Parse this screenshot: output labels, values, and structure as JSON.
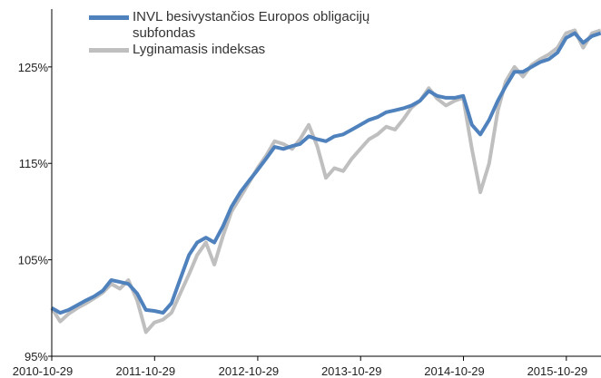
{
  "chart_data": {
    "type": "line",
    "x": [
      "2010-10-29",
      "2010-11-28",
      "2010-12-28",
      "2011-01-28",
      "2011-02-28",
      "2011-03-28",
      "2011-04-28",
      "2011-05-28",
      "2011-06-28",
      "2011-07-28",
      "2011-08-28",
      "2011-09-28",
      "2011-10-28",
      "2011-11-28",
      "2011-12-28",
      "2012-01-28",
      "2012-02-28",
      "2012-03-28",
      "2012-04-28",
      "2012-05-28",
      "2012-06-28",
      "2012-07-28",
      "2012-08-28",
      "2012-09-28",
      "2012-10-28",
      "2012-11-28",
      "2012-12-28",
      "2013-01-28",
      "2013-02-28",
      "2013-03-28",
      "2013-04-28",
      "2013-05-28",
      "2013-06-28",
      "2013-07-28",
      "2013-08-28",
      "2013-09-28",
      "2013-10-28",
      "2013-11-28",
      "2013-12-28",
      "2014-01-28",
      "2014-02-28",
      "2014-03-28",
      "2014-04-28",
      "2014-05-28",
      "2014-06-28",
      "2014-07-28",
      "2014-08-28",
      "2014-09-28",
      "2014-10-28",
      "2014-11-28",
      "2014-12-28",
      "2015-01-28",
      "2015-02-28",
      "2015-03-28",
      "2015-04-28",
      "2015-05-28",
      "2015-06-28",
      "2015-07-28",
      "2015-08-28",
      "2015-09-28",
      "2015-10-28",
      "2015-11-28",
      "2015-12-28",
      "2016-01-28",
      "2016-02-28"
    ],
    "series": [
      {
        "name": "Lyginamasis indeksas",
        "color": "#bfbfbf",
        "values": [
          100.0,
          98.6,
          99.4,
          100.0,
          100.5,
          101.0,
          101.6,
          102.5,
          102.0,
          102.9,
          100.8,
          97.5,
          98.5,
          98.8,
          99.5,
          101.5,
          103.5,
          105.5,
          106.8,
          104.5,
          107.5,
          110.0,
          111.5,
          113.0,
          114.5,
          115.8,
          117.3,
          117.0,
          116.5,
          117.5,
          119.0,
          116.8,
          113.5,
          114.5,
          114.2,
          115.5,
          116.5,
          117.5,
          118.0,
          118.8,
          118.5,
          119.5,
          120.8,
          121.5,
          122.8,
          121.7,
          121.0,
          121.5,
          121.8,
          116.5,
          112.0,
          115.0,
          120.5,
          123.5,
          125.0,
          124.0,
          125.2,
          125.8,
          126.3,
          127.0,
          128.5,
          128.8,
          127.0,
          128.5,
          128.8
        ]
      },
      {
        "name": "INVL besivystančios Europos obligacijų subfondas",
        "color": "#4f81bd",
        "values": [
          100.0,
          99.5,
          99.8,
          100.3,
          100.8,
          101.2,
          101.8,
          102.9,
          102.7,
          102.5,
          101.5,
          99.8,
          99.7,
          99.5,
          100.5,
          103.0,
          105.5,
          106.8,
          107.3,
          106.8,
          108.5,
          110.5,
          112.0,
          113.2,
          114.3,
          115.5,
          116.7,
          116.5,
          116.8,
          117.0,
          117.8,
          117.5,
          117.3,
          117.8,
          118.0,
          118.5,
          119.0,
          119.5,
          119.8,
          120.3,
          120.5,
          120.7,
          121.0,
          121.5,
          122.5,
          122.0,
          121.8,
          121.8,
          122.0,
          119.0,
          118.0,
          119.5,
          121.5,
          123.0,
          124.5,
          124.5,
          125.0,
          125.5,
          125.8,
          126.5,
          128.0,
          128.5,
          127.5,
          128.2,
          128.5
        ]
      }
    ],
    "xlim": [
      "2010-10-29",
      "2016-02-29"
    ],
    "xticks": [
      "2010-10-29",
      "2011-10-29",
      "2012-10-29",
      "2013-10-29",
      "2014-10-29",
      "2015-10-29"
    ],
    "ylim": [
      95,
      131
    ],
    "yticks": [
      {
        "value": 95,
        "label": "95%"
      },
      {
        "value": 105,
        "label": "105%"
      },
      {
        "value": 115,
        "label": "115%"
      },
      {
        "value": 125,
        "label": "125%"
      }
    ]
  }
}
